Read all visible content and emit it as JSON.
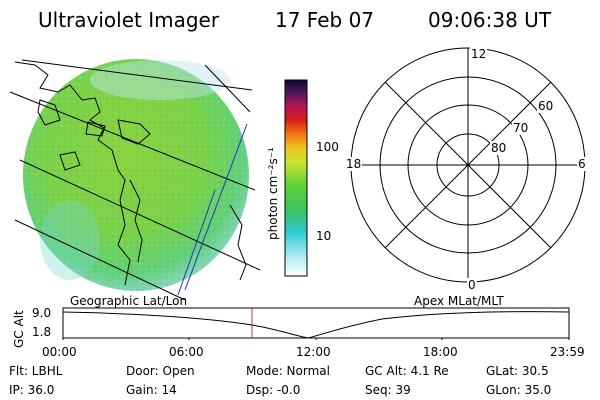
{
  "header": {
    "title": "Ultraviolet Imager",
    "date": "17 Feb 07",
    "time": "09:06:38 UT"
  },
  "colorbar": {
    "unit_label": "photon cm⁻²s⁻¹",
    "ticks": [
      "100",
      "10"
    ]
  },
  "polar_plot": {
    "mlt_labels": [
      "12",
      "18",
      "6",
      "0"
    ],
    "lat_labels": [
      "60",
      "70",
      "80"
    ]
  },
  "timeline": {
    "ylabel": "GC Alt",
    "yticks": [
      "9.0",
      "1.8"
    ],
    "left_label": "Geographic Lat/Lon",
    "right_label": "Apex MLat/MLT",
    "xticks": [
      "00:00",
      "06:00",
      "12:00",
      "18:00",
      "23:59"
    ]
  },
  "footer": {
    "row1": {
      "flt": "Flt: LBHL",
      "door": "Door: Open",
      "mode": "Mode: Normal",
      "gcalt": "GC Alt: 4.1 Re",
      "glat": "GLat:  30.5"
    },
    "row2": {
      "ip": "IP: 36.0",
      "gain": "Gain: 14",
      "dsp": "Dsp:   -0.0",
      "seq": "Seq: 39",
      "glon": "GLon:  35.0"
    }
  },
  "colors": {
    "image_fill": "#7fd640",
    "grid_line": "#000000",
    "track_marker": "#cc3333",
    "blue_lines": "#1d33c9"
  }
}
